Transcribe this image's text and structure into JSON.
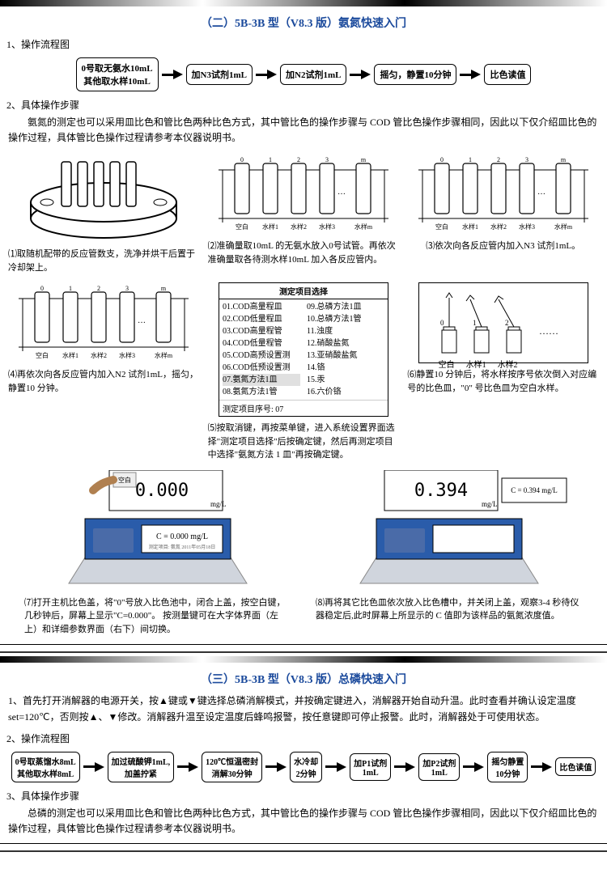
{
  "section2": {
    "title": "（二）5B-3B 型（V8.3 版）氨氮快速入门",
    "s1": "1、操作流程图",
    "flow": {
      "b1a": "0号取无氨水10mL",
      "b1b": "其他取水样10mL",
      "b2": "加N3试剂1mL",
      "b3": "加N2试剂1mL",
      "b4": "摇匀，静置10分钟",
      "b5": "比色读值"
    },
    "s2": "2、具体操作步骤",
    "intro": "氨氮的测定也可以采用皿比色和管比色两种比色方式，其中管比色的操作步骤与 COD 管比色操作步骤相同，因此以下仅介绍皿比色的操作过程，具体管比色操作过程请参考本仪器说明书。",
    "step1": "⑴取随机配带的反应管数支，洗净并烘干后置于冷却架上。",
    "step2": "⑵准确量取10mL 的无氨水放入0号试管。再依次准确量取各待测水样10mL 加入各反应管内。",
    "step3": "⑶依次向各反应管内加入N3 试剂1mL。",
    "step4": "⑷再依次向各反应管内加入N2 试剂1mL，摇匀，静置10 分钟。",
    "step5a": "⑸按取消键，再按菜单键，进入系统设置界面选择\"测定项目选择\"后按确定键，然后再测定项目中选择\"氨氮方法 1 皿\"再按确定键。",
    "step6": "⑹静置10 分钟后，将水样按序号依次倒入对应编号的比色皿，\"0\" 号比色皿为空白水样。",
    "step7": "⑺打开主机比色盖，将\"0\"号放入比色池中，闭合上盖，按空白键，几秒钟后，屏幕上显示\"C=0.000\"。 按测量键可在大字体界面（左上）和详细参数界面（右下）间切换。",
    "step8": "⑻再将其它比色皿依次放入比色槽中，并关闭上盖，观察3-4 秒待仪器稳定后,此时屏幕上所显示的 C 值即为该样品的氨氮浓度值。",
    "tubelabels": [
      "空白",
      "水样1",
      "水样2",
      "水样3",
      "水样m"
    ],
    "cuvlabels": [
      "空白",
      "水样1",
      "水样2"
    ],
    "menu": {
      "title": "测定项目选择",
      "left": [
        "01.COD高量程皿",
        "02.COD低量程皿",
        "03.COD高量程管",
        "04.COD低量程管",
        "05.COD高预设置测",
        "06.COD低预设置测",
        "07.氨氮方法1皿",
        "08.氨氮方法1管"
      ],
      "right": [
        "09.总磷方法1皿",
        "10.总磷方法1管",
        "11.浊度",
        "12.硝酸盐氮",
        "13.亚硝酸盐氮",
        "14.铬",
        "15.汞",
        "16.六价铬"
      ],
      "footer": "测定项目序号: 07"
    },
    "dev1_big": "0.000",
    "dev1_unit": "mg/L",
    "dev1_small": "C = 0.000 mg/L",
    "dev2_big": "0.394",
    "dev2_unit": "mg/L",
    "dev2_side": "C = 0.394 mg/L"
  },
  "section3": {
    "title": "（三）5B-3B 型（V8.3 版）总磷快速入门",
    "s1": "1、首先打开消解器的电源开关，按▲键或▼键选择总磷消解模式，并按确定键进入，消解器开始自动升温。此时查看并确认设定温度set=120℃，否则按▲、▼修改。消解器升温至设定温度后蜂鸣报警，按任意键即可停止报警。此时，消解器处于可使用状态。",
    "s2": "2、操作流程图",
    "flow": {
      "b1a": "0号取蒸馏水8mL",
      "b1b": "其他取水样8mL",
      "b2a": "加过硫酸钾1mL,",
      "b2b": "加盖拧紧",
      "b3a": "120℃恒温密封",
      "b3b": "消解30分钟",
      "b4a": "水冷却",
      "b4b": "2分钟",
      "b5a": "加P1试剂",
      "b5b": "1mL",
      "b6a": "加P2试剂",
      "b6b": "1mL",
      "b7a": "摇匀静置",
      "b7b": "10分钟",
      "b8": "比色读值"
    },
    "s3": "3、具体操作步骤",
    "intro": "总磷的测定也可以采用皿比色和管比色两种比色方式，其中管比色的操作步骤与 COD 管比色操作步骤相同，因此以下仅介绍皿比色的操作过程，具体管比色操作过程请参考本仪器说明书。"
  },
  "colors": {
    "title_color": "#1b4a9c",
    "box_border": "#000000",
    "device_blue": "#2a5caa",
    "device_gray": "#d0d0d0"
  }
}
